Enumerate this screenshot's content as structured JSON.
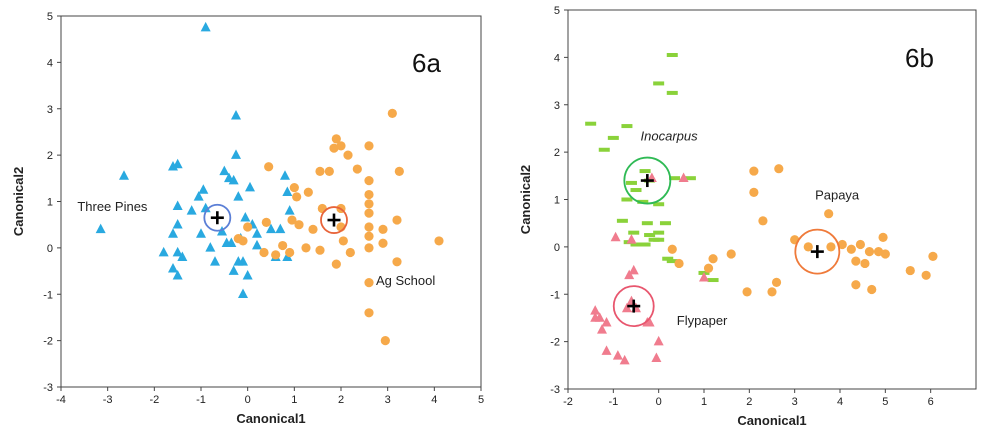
{
  "colors": {
    "blue": "#29a9e0",
    "orange": "#f6a94a",
    "green": "#8ad23a",
    "pink": "#f07c8e",
    "ring_blue": "#5b7fd6",
    "ring_orange": "#e8643a",
    "ring_green": "#2fba55",
    "ring_pink": "#e8566e",
    "ring_orange_b": "#ef7a3a"
  },
  "chart_data": [
    {
      "type": "scatter",
      "panel_label": "6a",
      "xlabel": "Canonical1",
      "ylabel": "Canonical2",
      "xlim": [
        -4,
        5
      ],
      "ylim": [
        -3,
        5
      ],
      "xticks": [
        -4,
        -3,
        -2,
        -1,
        0,
        1,
        2,
        3,
        4,
        5
      ],
      "yticks": [
        -3,
        -2,
        -1,
        0,
        1,
        2,
        3,
        4,
        5
      ],
      "grid": false,
      "series": [
        {
          "group": "three-pines",
          "marker": "triangle",
          "color": "blue",
          "points": [
            [
              -0.9,
              4.75
            ],
            [
              -0.25,
              2.85
            ],
            [
              -3.15,
              0.4
            ],
            [
              -2.65,
              1.55
            ],
            [
              -1.6,
              1.75
            ],
            [
              -1.5,
              1.8
            ],
            [
              -0.95,
              1.25
            ],
            [
              -1.05,
              1.1
            ],
            [
              -0.5,
              1.65
            ],
            [
              -0.4,
              1.5
            ],
            [
              -0.3,
              1.45
            ],
            [
              -0.25,
              2.0
            ],
            [
              0.05,
              1.3
            ],
            [
              -0.2,
              1.1
            ],
            [
              0.8,
              1.55
            ],
            [
              0.85,
              1.2
            ],
            [
              0.9,
              0.8
            ],
            [
              -1.5,
              0.9
            ],
            [
              -1.2,
              0.8
            ],
            [
              -0.9,
              0.85
            ],
            [
              -1.5,
              0.5
            ],
            [
              -1.6,
              0.3
            ],
            [
              -1.5,
              -0.1
            ],
            [
              -1.4,
              -0.2
            ],
            [
              -1.8,
              -0.1
            ],
            [
              -1.6,
              -0.45
            ],
            [
              -1.5,
              -0.6
            ],
            [
              -1.0,
              0.3
            ],
            [
              -0.8,
              0.0
            ],
            [
              -0.7,
              -0.3
            ],
            [
              -0.55,
              0.35
            ],
            [
              -0.45,
              0.1
            ],
            [
              -0.35,
              0.1
            ],
            [
              -0.3,
              -0.5
            ],
            [
              -0.1,
              -0.3
            ],
            [
              0.0,
              -0.6
            ],
            [
              -0.1,
              -1.0
            ],
            [
              0.1,
              0.5
            ],
            [
              0.2,
              0.3
            ],
            [
              0.5,
              0.4
            ],
            [
              0.7,
              0.4
            ],
            [
              0.85,
              -0.2
            ],
            [
              0.6,
              -0.2
            ],
            [
              -0.15,
              0.2
            ],
            [
              -0.05,
              0.65
            ],
            [
              0.2,
              0.05
            ],
            [
              -0.2,
              -0.3
            ]
          ]
        },
        {
          "group": "ag-school",
          "marker": "circle",
          "color": "orange",
          "points": [
            [
              3.1,
              2.9
            ],
            [
              1.9,
              2.35
            ],
            [
              1.85,
              2.15
            ],
            [
              2.15,
              2.0
            ],
            [
              2.0,
              2.2
            ],
            [
              2.6,
              2.2
            ],
            [
              2.35,
              1.7
            ],
            [
              1.55,
              1.65
            ],
            [
              1.75,
              1.65
            ],
            [
              0.45,
              1.75
            ],
            [
              1.0,
              1.3
            ],
            [
              1.05,
              1.1
            ],
            [
              1.3,
              1.2
            ],
            [
              2.6,
              1.45
            ],
            [
              2.6,
              1.15
            ],
            [
              3.25,
              1.65
            ],
            [
              2.6,
              0.95
            ],
            [
              1.6,
              0.85
            ],
            [
              2.0,
              0.85
            ],
            [
              2.6,
              0.75
            ],
            [
              3.2,
              0.6
            ],
            [
              0.95,
              0.6
            ],
            [
              0.4,
              0.55
            ],
            [
              1.1,
              0.5
            ],
            [
              1.4,
              0.4
            ],
            [
              2.0,
              0.45
            ],
            [
              2.6,
              0.45
            ],
            [
              2.9,
              0.4
            ],
            [
              0.0,
              0.45
            ],
            [
              -0.2,
              0.2
            ],
            [
              0.35,
              -0.1
            ],
            [
              0.75,
              0.05
            ],
            [
              0.9,
              -0.1
            ],
            [
              1.25,
              0.0
            ],
            [
              1.55,
              -0.05
            ],
            [
              2.05,
              0.15
            ],
            [
              2.2,
              -0.1
            ],
            [
              1.9,
              -0.35
            ],
            [
              2.6,
              0.25
            ],
            [
              2.6,
              0.0
            ],
            [
              2.9,
              0.1
            ],
            [
              3.2,
              -0.3
            ],
            [
              4.1,
              0.15
            ],
            [
              2.6,
              -0.75
            ],
            [
              2.6,
              -1.4
            ],
            [
              2.95,
              -2.0
            ],
            [
              -0.1,
              0.15
            ],
            [
              0.6,
              -0.15
            ]
          ]
        }
      ],
      "centroids": [
        {
          "name": "Three Pines",
          "x": -0.65,
          "y": 0.65,
          "ring_color": "ring_blue"
        },
        {
          "name": "Ag School",
          "x": 1.85,
          "y": 0.6,
          "ring_color": "ring_orange"
        }
      ],
      "annotations": [
        {
          "text": "Three Pines",
          "x": -3.65,
          "y": 0.8,
          "italic": false
        },
        {
          "text": "Ag School",
          "x": 2.75,
          "y": -0.8,
          "italic": false
        }
      ]
    },
    {
      "type": "scatter",
      "panel_label": "6b",
      "xlabel": "Canonical1",
      "ylabel": "Canonical2",
      "xlim": [
        -2,
        7
      ],
      "ylim": [
        -3,
        5
      ],
      "xticks": [
        -2,
        -1,
        0,
        1,
        2,
        3,
        4,
        5,
        6
      ],
      "yticks": [
        -3,
        -2,
        -1,
        0,
        1,
        2,
        3,
        4,
        5
      ],
      "grid": false,
      "series": [
        {
          "group": "inocarpus",
          "marker": "dash",
          "color": "green",
          "points": [
            [
              0.3,
              4.05
            ],
            [
              0.0,
              3.45
            ],
            [
              0.3,
              3.25
            ],
            [
              -1.5,
              2.6
            ],
            [
              -1.0,
              2.3
            ],
            [
              -0.7,
              2.55
            ],
            [
              -1.2,
              2.05
            ],
            [
              -0.3,
              1.6
            ],
            [
              -0.2,
              1.4
            ],
            [
              -0.6,
              1.35
            ],
            [
              0.35,
              1.45
            ],
            [
              0.7,
              1.45
            ],
            [
              -0.5,
              1.2
            ],
            [
              -0.35,
              0.95
            ],
            [
              0.0,
              0.9
            ],
            [
              -0.7,
              1.0
            ],
            [
              -0.25,
              0.5
            ],
            [
              0.15,
              0.5
            ],
            [
              -0.8,
              0.55
            ],
            [
              -0.55,
              0.3
            ],
            [
              -0.2,
              0.25
            ],
            [
              -0.3,
              0.05
            ],
            [
              0.0,
              0.3
            ],
            [
              -0.5,
              0.05
            ],
            [
              -0.65,
              0.1
            ],
            [
              0.0,
              0.15
            ],
            [
              0.3,
              -0.3
            ],
            [
              0.2,
              -0.25
            ],
            [
              1.2,
              -0.7
            ],
            [
              1.0,
              -0.55
            ],
            [
              -0.1,
              0.15
            ]
          ]
        },
        {
          "group": "flypaper",
          "marker": "triangle",
          "color": "pink",
          "points": [
            [
              0.55,
              1.45
            ],
            [
              -0.95,
              0.2
            ],
            [
              -0.6,
              0.15
            ],
            [
              -0.55,
              -0.5
            ],
            [
              -0.65,
              -0.6
            ],
            [
              -1.4,
              -1.35
            ],
            [
              -1.3,
              -1.5
            ],
            [
              -1.15,
              -1.6
            ],
            [
              -0.7,
              -1.3
            ],
            [
              -1.15,
              -2.2
            ],
            [
              -0.9,
              -2.3
            ],
            [
              -0.75,
              -2.4
            ],
            [
              0.0,
              -2.0
            ],
            [
              -0.05,
              -2.35
            ],
            [
              -0.2,
              -1.6
            ],
            [
              1.0,
              -0.65
            ],
            [
              -0.6,
              -1.15
            ],
            [
              -0.5,
              -1.3
            ],
            [
              -0.15,
              1.45
            ],
            [
              -1.4,
              -1.5
            ],
            [
              -1.25,
              -1.75
            ],
            [
              -0.25,
              -1.6
            ]
          ]
        },
        {
          "group": "papaya",
          "marker": "circle",
          "color": "orange",
          "points": [
            [
              2.1,
              1.6
            ],
            [
              2.1,
              1.15
            ],
            [
              2.65,
              1.65
            ],
            [
              2.3,
              0.55
            ],
            [
              3.75,
              0.7
            ],
            [
              3.0,
              0.15
            ],
            [
              3.3,
              0.0
            ],
            [
              3.8,
              0.0
            ],
            [
              4.05,
              0.05
            ],
            [
              4.25,
              -0.05
            ],
            [
              4.45,
              0.05
            ],
            [
              4.35,
              -0.3
            ],
            [
              4.55,
              -0.35
            ],
            [
              4.65,
              -0.1
            ],
            [
              4.95,
              0.2
            ],
            [
              4.85,
              -0.1
            ],
            [
              5.0,
              -0.15
            ],
            [
              5.55,
              -0.5
            ],
            [
              5.9,
              -0.6
            ],
            [
              6.05,
              -0.2
            ],
            [
              2.6,
              -0.75
            ],
            [
              2.5,
              -0.95
            ],
            [
              1.95,
              -0.95
            ],
            [
              1.6,
              -0.15
            ],
            [
              1.2,
              -0.25
            ],
            [
              1.1,
              -0.45
            ],
            [
              4.35,
              -0.8
            ],
            [
              4.7,
              -0.9
            ],
            [
              0.3,
              -0.05
            ],
            [
              0.45,
              -0.35
            ]
          ]
        }
      ],
      "centroids": [
        {
          "name": "Inocarpus",
          "x": -0.25,
          "y": 1.4,
          "ring_color": "ring_green"
        },
        {
          "name": "Flypaper",
          "x": -0.55,
          "y": -1.25,
          "ring_color": "ring_pink"
        },
        {
          "name": "Papaya",
          "x": 3.5,
          "y": -0.1,
          "ring_color": "ring_orange_b"
        }
      ],
      "annotations": [
        {
          "text": "Inocarpus",
          "x": -0.4,
          "y": 2.25,
          "italic": true
        },
        {
          "text": "Flypaper",
          "x": 0.4,
          "y": -1.65,
          "italic": false
        },
        {
          "text": "Papaya",
          "x": 3.45,
          "y": 1.0,
          "italic": false
        }
      ]
    }
  ]
}
